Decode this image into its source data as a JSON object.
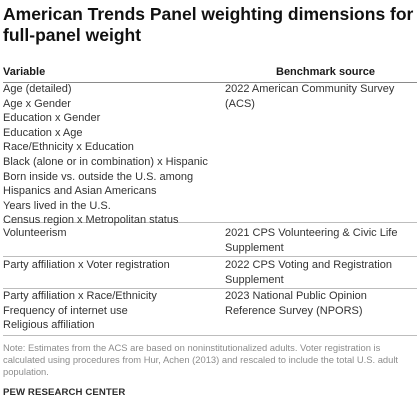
{
  "title": "American Trends Panel weighting dimensions for full-panel weight",
  "table": {
    "headers": {
      "variable": "Variable",
      "source": "Benchmark source"
    },
    "groups": [
      {
        "variables": [
          "Age (detailed)",
          "Age x Gender",
          "Education x Gender",
          "Education x Age",
          "Race/Ethnicity x Education",
          "Black (alone or in combination) x Hispanic",
          "Born inside vs. outside the U.S. among Hispanics and Asian Americans",
          "Years lived in the U.S.",
          "Census region x Metropolitan status"
        ],
        "source": "2022 American Community Survey (ACS)"
      },
      {
        "variables": [
          "Volunteerism"
        ],
        "source": "2021 CPS Volunteering & Civic Life Supplement"
      },
      {
        "variables": [
          "Party affiliation x Voter registration"
        ],
        "source": "2022 CPS Voting and Registration Supplement"
      },
      {
        "variables": [
          "Party affiliation x Race/Ethnicity",
          "Frequency of internet use",
          "Religious affiliation"
        ],
        "source": "2023 National Public Opinion Reference Survey (NPORS)"
      }
    ]
  },
  "note": "Note: Estimates from the ACS are based on noninstitutionalized adults. Voter registration is calculated using procedures from Hur, Achen (2013) and rescaled to include the total U.S. adult population.",
  "footer": "PEW RESEARCH CENTER"
}
